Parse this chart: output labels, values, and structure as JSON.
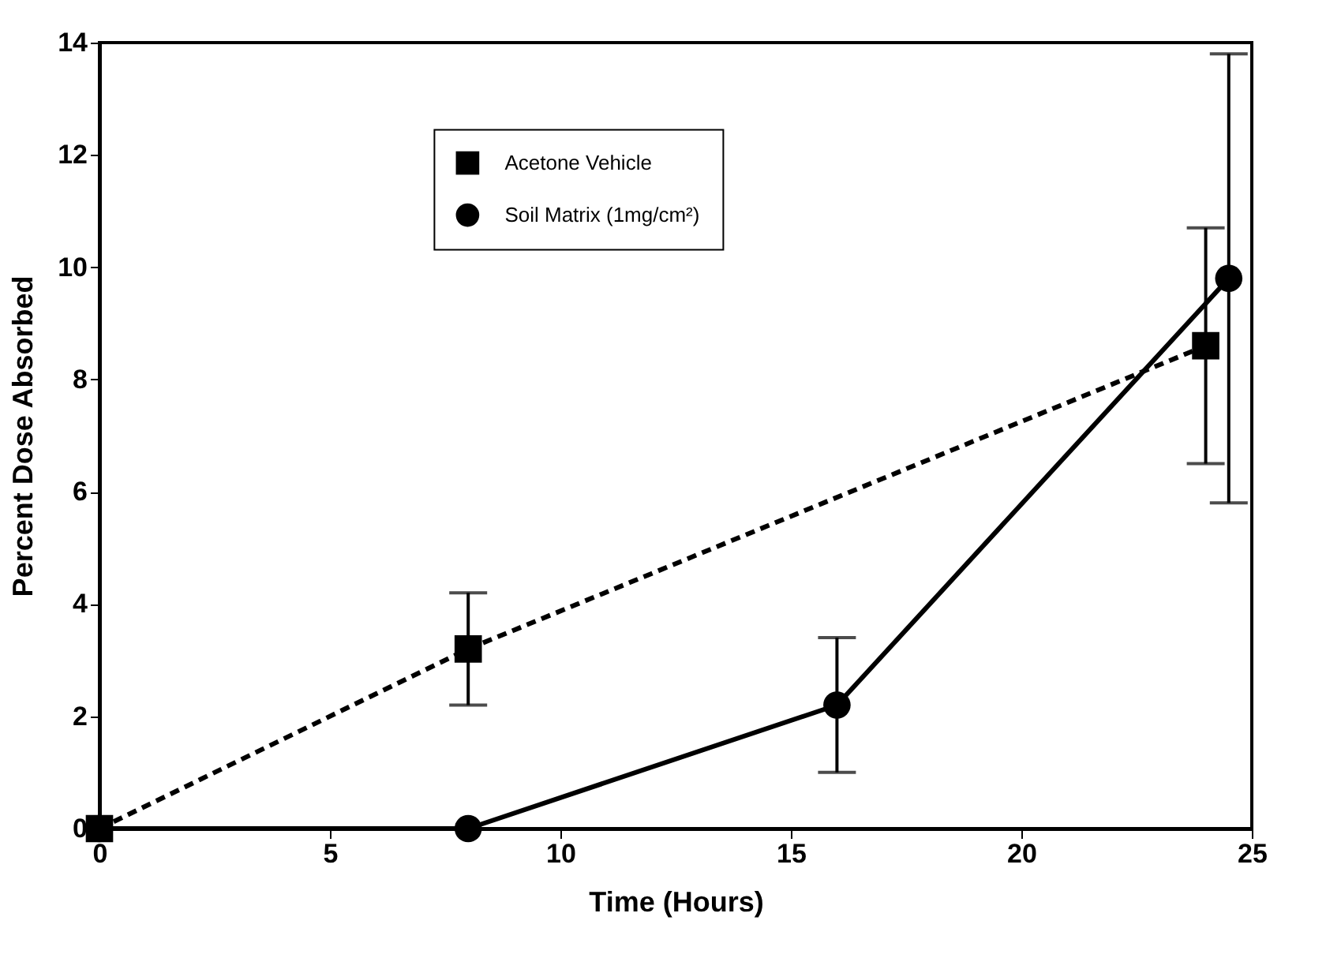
{
  "chart_data": {
    "type": "line",
    "xlabel": "Time (Hours)",
    "ylabel": "Percent Dose Absorbed",
    "xlim": [
      0,
      25
    ],
    "xticks": [
      0,
      5,
      10,
      15,
      20,
      25
    ],
    "ylim": [
      0,
      14
    ],
    "yticks": [
      0,
      2,
      4,
      6,
      8,
      10,
      12,
      14
    ],
    "grid": false,
    "legend": "top",
    "series": [
      {
        "name": "Acetone Vehicle",
        "color": "#000000",
        "marker": "square",
        "line_style": "dashed",
        "x": [
          0,
          8,
          24
        ],
        "values": [
          0,
          3.2,
          8.6
        ],
        "errors": [
          null,
          [
            2.2,
            4.2
          ],
          [
            6.5,
            10.7
          ]
        ]
      },
      {
        "name": "Soil Matrix (1mg/cm²)",
        "color": "#000000",
        "marker": "circle",
        "line_style": "solid",
        "x": [
          0,
          8,
          16,
          24.5
        ],
        "values": [
          0,
          0,
          2.2,
          9.8
        ],
        "errors": [
          null,
          null,
          1.2,
          [
            5.8,
            13.8
          ]
        ]
      }
    ]
  }
}
